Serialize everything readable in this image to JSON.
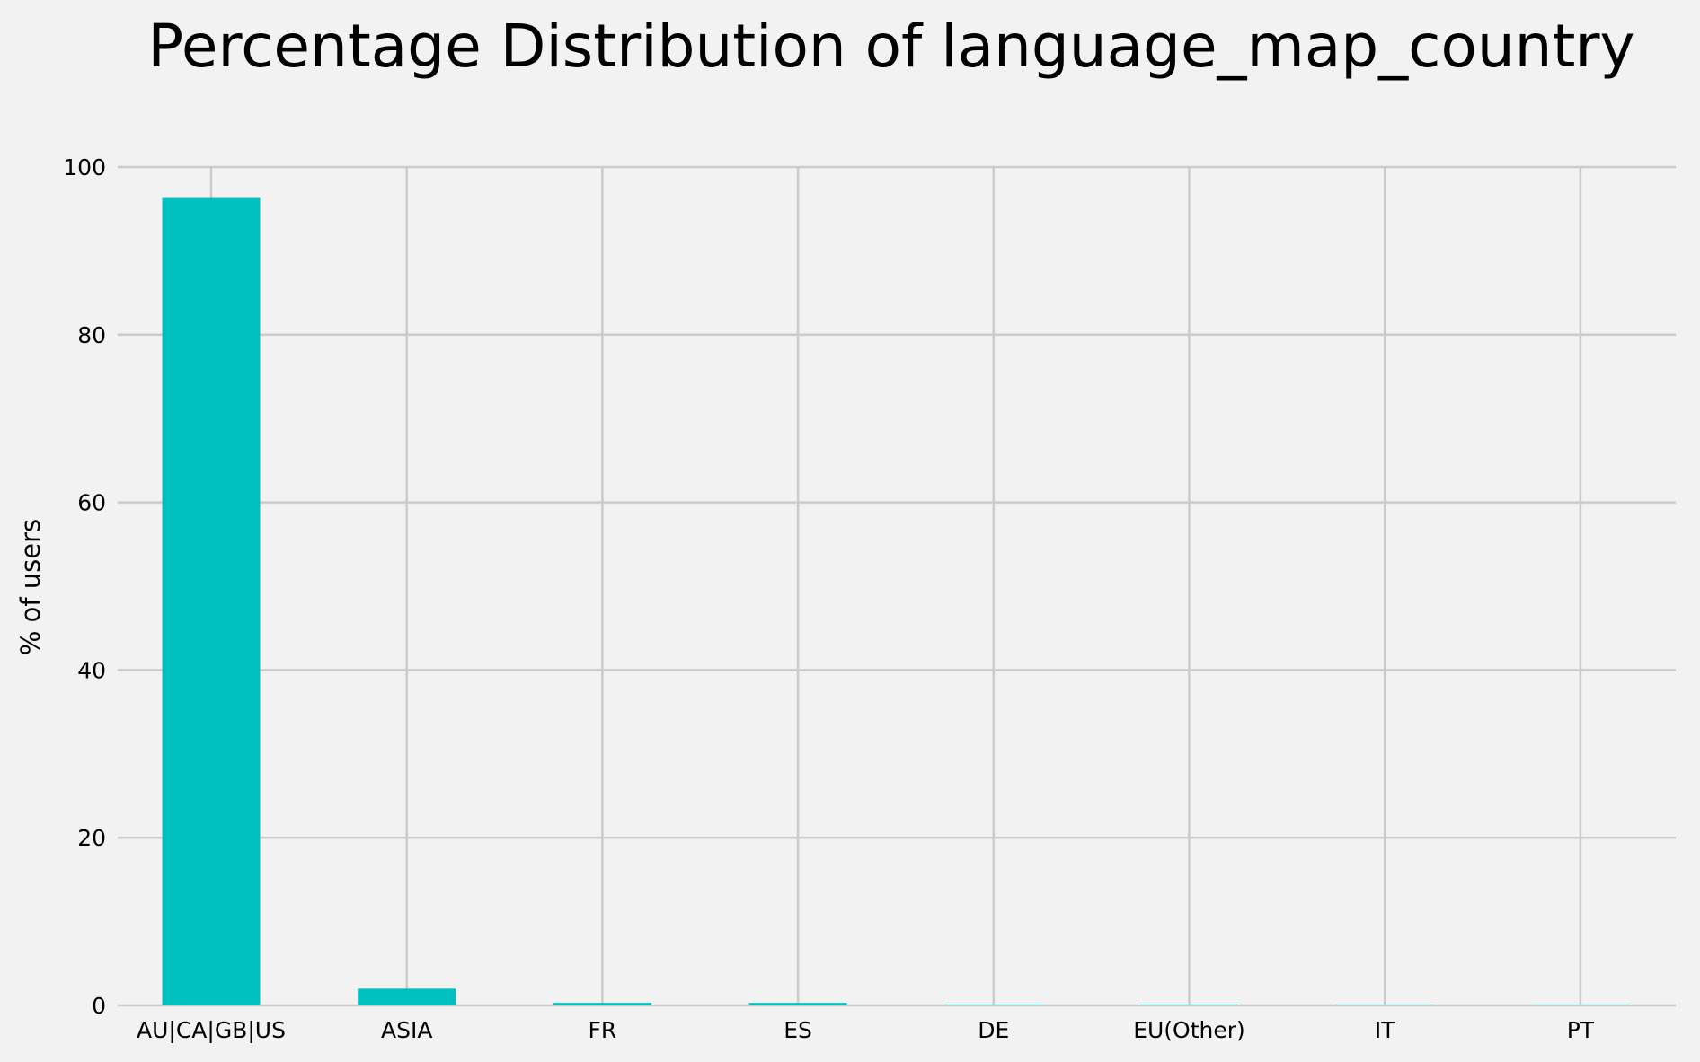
{
  "chart_data": {
    "type": "bar",
    "title": "Percentage Distribution of language_map_country",
    "xlabel": "",
    "ylabel": "% of users",
    "categories": [
      "AU|CA|GB|US",
      "ASIA",
      "FR",
      "ES",
      "DE",
      "EU(Other)",
      "IT",
      "PT"
    ],
    "values": [
      96.3,
      2.0,
      0.3,
      0.3,
      0.1,
      0.1,
      0.05,
      0.05
    ],
    "ylim": [
      0,
      100
    ],
    "yticks": [
      0,
      20,
      40,
      60,
      80,
      100
    ],
    "grid": true,
    "legend": "none",
    "bar_color": "#00bfbf",
    "background_color": "#f2f2f2",
    "grid_color": "#cbcbcb"
  }
}
